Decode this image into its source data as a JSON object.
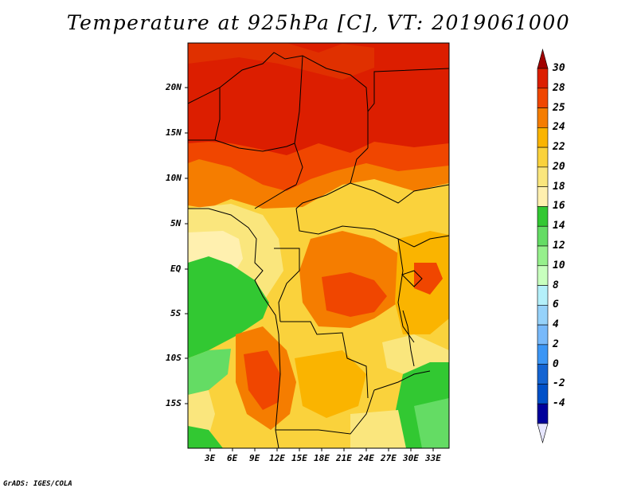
{
  "title": "Temperature at 925hPa [C], VT: 2019061000",
  "credit": "GrADS: IGES/COLA",
  "map": {
    "lat_labels": [
      "20N",
      "15N",
      "10N",
      "5N",
      "EQ",
      "5S",
      "10S",
      "15S"
    ],
    "lon_labels": [
      "3E",
      "6E",
      "9E",
      "12E",
      "15E",
      "18E",
      "21E",
      "24E",
      "27E",
      "30E",
      "33E"
    ]
  },
  "colorbar": {
    "labels": [
      "30",
      "28",
      "25",
      "24",
      "22",
      "20",
      "18",
      "16",
      "14",
      "12",
      "10",
      "8",
      "6",
      "4",
      "2",
      "0",
      "-2",
      "-4"
    ],
    "colors": [
      "#a00000",
      "#dc1e00",
      "#f04600",
      "#f57d00",
      "#fab400",
      "#fad23c",
      "#fae67d",
      "#fff0af",
      "#32c832",
      "#64dc64",
      "#96f08c",
      "#c8ffbe",
      "#b4f0fa",
      "#96d2fa",
      "#78b9fa",
      "#3c96f5",
      "#1464d2",
      "#0050c8",
      "#00009b",
      "#e6e6ff"
    ]
  }
}
